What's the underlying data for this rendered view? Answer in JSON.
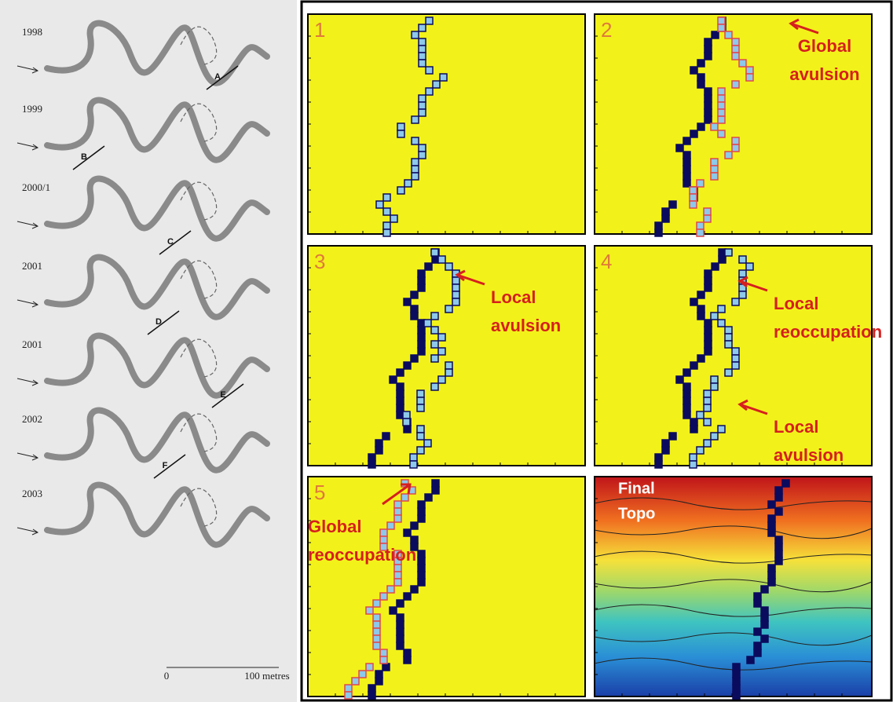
{
  "left": {
    "years": [
      "1998",
      "1999",
      "2000/1",
      "2001",
      "2001",
      "2002",
      "2003"
    ],
    "sections": [
      "A",
      "B",
      "C",
      "D",
      "E",
      "F"
    ],
    "scale": {
      "start": "0",
      "end": "100 metres"
    }
  },
  "right": {
    "panels": [
      {
        "number": "1",
        "annotations": []
      },
      {
        "number": "2",
        "annotations": [
          {
            "lines": [
              "Global",
              "avulsion"
            ]
          }
        ]
      },
      {
        "number": "3",
        "annotations": [
          {
            "lines": [
              "Local",
              "avulsion"
            ]
          }
        ]
      },
      {
        "number": "4",
        "annotations": [
          {
            "lines": [
              "Local",
              "reoccupation"
            ]
          },
          {
            "lines": [
              "Local",
              "avulsion"
            ]
          }
        ]
      },
      {
        "number": "5",
        "annotations": [
          {
            "lines": [
              "Global",
              "reoccupation"
            ]
          }
        ]
      }
    ],
    "final_label": [
      "Final",
      "Topo"
    ]
  }
}
